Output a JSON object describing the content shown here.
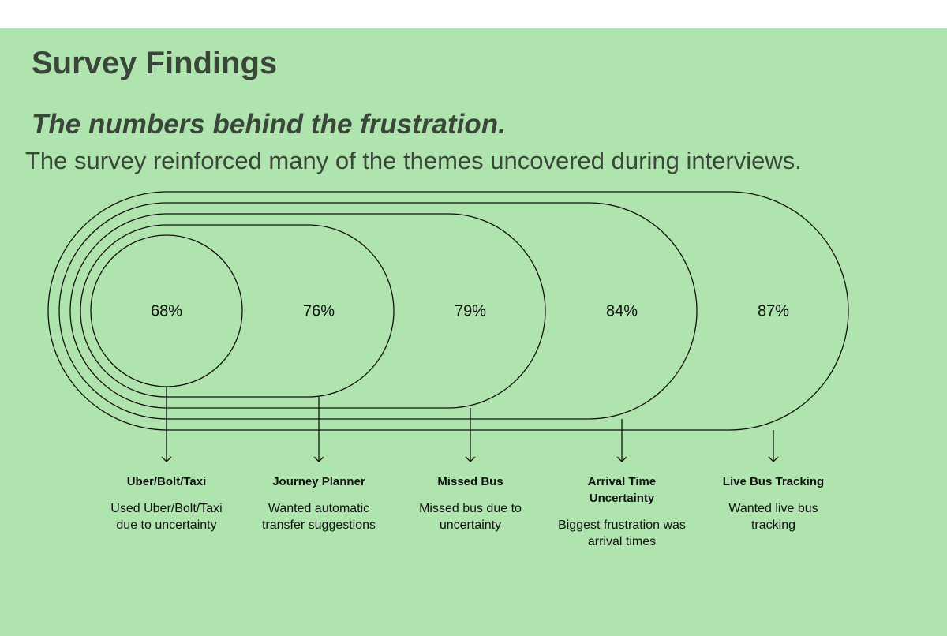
{
  "header": {
    "title": "Survey Findings",
    "subtitle": "The numbers behind the frustration.",
    "description": "The survey reinforced many of the themes uncovered during interviews."
  },
  "findings": [
    {
      "percent": "68%",
      "label": "Uber/Bolt/Taxi",
      "description": "Used Uber/Bolt/Taxi due to uncertainty"
    },
    {
      "percent": "76%",
      "label": "Journey Planner",
      "description": "Wanted automatic transfer suggestions"
    },
    {
      "percent": "79%",
      "label": "Missed Bus",
      "description": "Missed bus due to uncertainty"
    },
    {
      "percent": "84%",
      "label": "Arrival Time Uncertainty",
      "description": "Biggest frustration was arrival times"
    },
    {
      "percent": "87%",
      "label": "Live Bus Tracking",
      "description": "Wanted live bus tracking"
    }
  ]
}
